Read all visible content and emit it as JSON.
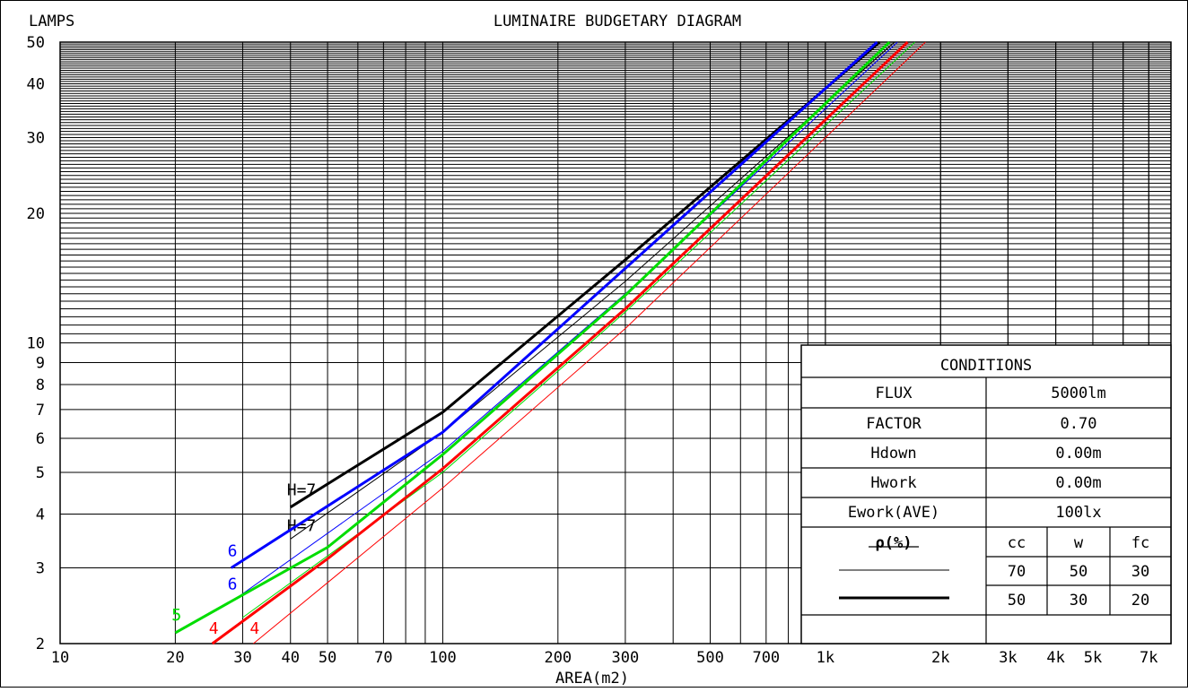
{
  "chart_data": {
    "type": "line",
    "title": "LUMINAIRE BUDGETARY DIAGRAM",
    "ylabel": "LAMPS",
    "xlabel": "AREA(m2)",
    "xscale": "log",
    "yscale": "log",
    "xlim": [
      10,
      8000
    ],
    "ylim": [
      2,
      50
    ],
    "x_ticks": [
      10,
      20,
      30,
      40,
      50,
      70,
      100,
      200,
      300,
      500,
      700,
      1000,
      2000,
      3000,
      4000,
      5000,
      7000
    ],
    "x_tick_labels": [
      "10",
      "20",
      "30",
      "40",
      "50",
      "70",
      "100",
      "200",
      "300",
      "500",
      "700",
      "1k",
      "2k",
      "3k",
      "4k",
      "5k",
      "7k"
    ],
    "y_ticks": [
      2,
      3,
      4,
      5,
      6,
      7,
      8,
      9,
      10,
      20,
      30,
      40,
      50
    ],
    "y_tick_labels": [
      "2",
      "3",
      "4",
      "5",
      "6",
      "7",
      "8",
      "9",
      "10",
      "20",
      "30",
      "40",
      "50"
    ],
    "grid": true,
    "series": [
      {
        "name": "H=7",
        "label": "H=7",
        "color": "#000000",
        "style": "thick",
        "x": [
          40,
          100,
          300,
          900
        ],
        "y": [
          4.15,
          6.9,
          15.6,
          36
        ],
        "label_at": [
          40,
          4.3
        ]
      },
      {
        "name": "H=7",
        "label": "H=7",
        "color": "#000000",
        "style": "thin",
        "x": [
          40,
          100,
          300,
          1000
        ],
        "y": [
          3.5,
          6.2,
          13.9,
          36
        ],
        "label_at": [
          40,
          3.55
        ]
      },
      {
        "name": "6",
        "label": "6",
        "color": "#0000ff",
        "style": "thick",
        "x": [
          28,
          100,
          300,
          1000
        ],
        "y": [
          3.0,
          6.2,
          14.9,
          39
        ],
        "label_at": [
          28,
          3.1
        ]
      },
      {
        "name": "6",
        "label": "6",
        "color": "#0000ff",
        "style": "thin",
        "x": [
          28,
          100,
          300,
          1000
        ],
        "y": [
          2.5,
          5.6,
          13.0,
          35
        ],
        "label_at": [
          28,
          2.6
        ]
      },
      {
        "name": "5",
        "label": "5",
        "color": "#00dd00",
        "style": "thick",
        "x": [
          20,
          50,
          100,
          300,
          1000
        ],
        "y": [
          2.12,
          3.35,
          5.5,
          12.9,
          36
        ],
        "label_at": [
          20,
          2.2
        ]
      },
      {
        "name": "5",
        "label": "5",
        "color": "#00dd00",
        "style": "thin",
        "x": [
          30,
          100,
          300,
          1000
        ],
        "y": [
          2.3,
          5.0,
          11.8,
          32
        ],
        "label_at": [
          20,
          2.2
        ]
      },
      {
        "name": "4",
        "label": "4",
        "color": "#ff0000",
        "style": "thick",
        "x": [
          25,
          50,
          100,
          300,
          1000
        ],
        "y": [
          2.0,
          3.15,
          5.1,
          12.0,
          33
        ],
        "label_at": [
          25,
          2.05
        ]
      },
      {
        "name": "4",
        "label": "4",
        "color": "#ff0000",
        "style": "thin",
        "x": [
          32,
          100,
          300,
          1000
        ],
        "y": [
          2.0,
          4.6,
          10.8,
          30
        ],
        "label_at": [
          32,
          2.05
        ]
      }
    ]
  },
  "conditions": {
    "title": "CONDITIONS",
    "rows": [
      {
        "label": "FLUX",
        "value": "5000lm"
      },
      {
        "label": "FACTOR",
        "value": "0.70"
      },
      {
        "label": "Hdown",
        "value": "0.00m"
      },
      {
        "label": "Hwork",
        "value": "0.00m"
      },
      {
        "label": "Ework(AVE)",
        "value": "100lx"
      }
    ],
    "rho_header": "ρ(%)",
    "rho_cols": [
      "cc",
      "w",
      "fc"
    ],
    "thin_line": [
      "70",
      "50",
      "30"
    ],
    "thick_line": [
      "50",
      "30",
      "20"
    ]
  }
}
